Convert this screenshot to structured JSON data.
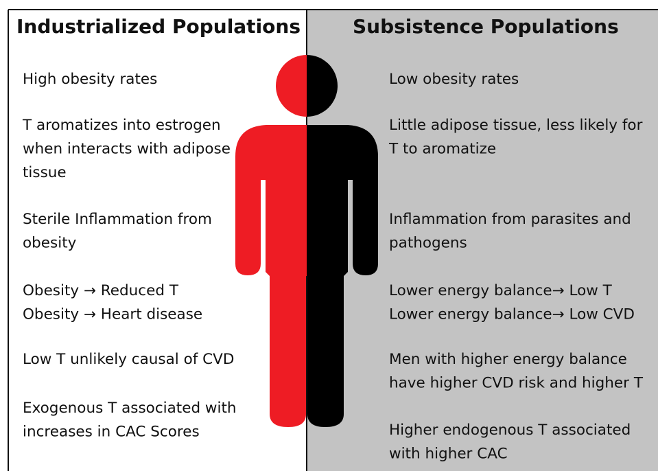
{
  "left": {
    "title": "Industrialized Populations",
    "items": [
      [
        "High obesity rates"
      ],
      [
        "T aromatizes into estrogen",
        "when interacts with adipose",
        "tissue"
      ],
      [
        "Sterile Inflammation from",
        "obesity"
      ],
      [
        "Obesity → Reduced T",
        "Obesity → Heart disease"
      ],
      [
        "Low T unlikely causal of CVD"
      ],
      [
        "Exogenous T associated with",
        "increases in CAC Scores"
      ]
    ]
  },
  "right": {
    "title": "Subsistence Populations",
    "items": [
      [
        "Low obesity rates"
      ],
      [
        "Little adipose tissue, less likely for",
        "T to aromatize"
      ],
      [
        "Inflammation from parasites and",
        "pathogens"
      ],
      [
        "Lower energy balance→ Low T",
        "Lower energy balance→ Low CVD"
      ],
      [
        "Men with higher energy balance",
        "have higher CVD risk and higher T"
      ],
      [
        "Higher endogenous T  associated",
        "with higher CAC"
      ]
    ]
  }
}
